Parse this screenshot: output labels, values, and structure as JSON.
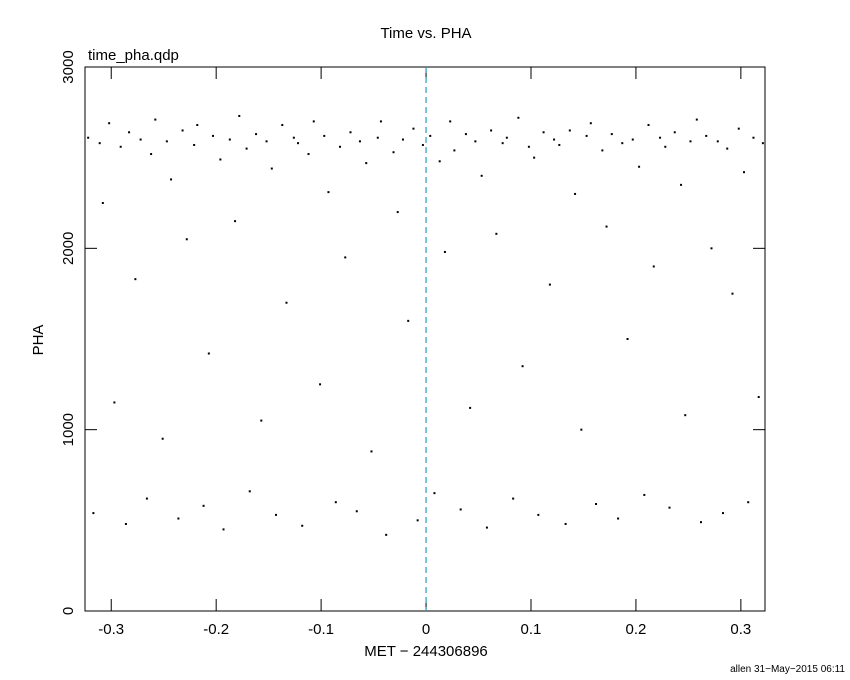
{
  "chart_data": {
    "type": "scatter",
    "title": "Time vs. PHA",
    "subtitle": "time_pha.qdp",
    "x_label": "MET − 244306896",
    "y_label": "PHA",
    "footer": "allen 31−May−2015 06:11",
    "xlim": [
      -0.325,
      0.323
    ],
    "ylim": [
      0,
      3000
    ],
    "xticks": [
      -0.3,
      -0.2,
      -0.1,
      0,
      0.1,
      0.2,
      0.3
    ],
    "yticks": [
      0,
      1000,
      2000,
      3000
    ],
    "vline": 0,
    "vline_color": "#2aa0b8",
    "series": [
      {
        "color": "#000000",
        "x": [
          -0.322,
          -0.317,
          -0.311,
          -0.308,
          -0.302,
          -0.297,
          -0.291,
          -0.286,
          -0.283,
          -0.277,
          -0.272,
          -0.266,
          -0.262,
          -0.258,
          -0.251,
          -0.247,
          -0.243,
          -0.236,
          -0.232,
          -0.228,
          -0.221,
          -0.218,
          -0.212,
          -0.207,
          -0.203,
          -0.196,
          -0.193,
          -0.187,
          -0.182,
          -0.178,
          -0.171,
          -0.168,
          -0.162,
          -0.157,
          -0.152,
          -0.147,
          -0.143,
          -0.137,
          -0.133,
          -0.126,
          -0.122,
          -0.118,
          -0.112,
          -0.107,
          -0.101,
          -0.097,
          -0.093,
          -0.086,
          -0.082,
          -0.077,
          -0.072,
          -0.066,
          -0.063,
          -0.057,
          -0.052,
          -0.046,
          -0.043,
          -0.038,
          -0.031,
          -0.027,
          -0.022,
          -0.017,
          -0.012,
          -0.008,
          -0.003,
          0.004,
          0.008,
          0.013,
          0.018,
          0.023,
          0.027,
          0.033,
          0.038,
          0.042,
          0.047,
          0.053,
          0.058,
          0.062,
          0.067,
          0.073,
          0.077,
          0.083,
          0.088,
          0.092,
          0.098,
          0.103,
          0.107,
          0.112,
          0.118,
          0.122,
          0.127,
          0.133,
          0.137,
          0.142,
          0.148,
          0.153,
          0.157,
          0.162,
          0.168,
          0.172,
          0.177,
          0.183,
          0.187,
          0.192,
          0.197,
          0.203,
          0.208,
          0.212,
          0.217,
          0.223,
          0.228,
          0.232,
          0.237,
          0.243,
          0.247,
          0.252,
          0.258,
          0.262,
          0.267,
          0.272,
          0.278,
          0.283,
          0.287,
          0.292,
          0.298,
          0.303,
          0.307,
          0.312,
          0.317,
          0.321
        ],
        "values": [
          2610,
          540,
          2580,
          2250,
          2690,
          1150,
          2560,
          480,
          2640,
          1830,
          2600,
          620,
          2520,
          2710,
          950,
          2590,
          2380,
          510,
          2650,
          2050,
          2570,
          2680,
          580,
          1420,
          2620,
          2490,
          450,
          2600,
          2150,
          2730,
          2550,
          660,
          2630,
          1050,
          2590,
          2440,
          530,
          2680,
          1700,
          2610,
          2580,
          470,
          2520,
          2700,
          1250,
          2620,
          2310,
          600,
          2560,
          1950,
          2640,
          550,
          2590,
          2470,
          880,
          2610,
          2700,
          420,
          2530,
          2200,
          2600,
          1600,
          2660,
          500,
          2570,
          2620,
          650,
          2480,
          1980,
          2700,
          2540,
          560,
          2630,
          1120,
          2590,
          2400,
          460,
          2650,
          2080,
          2580,
          2610,
          620,
          2720,
          1350,
          2560,
          2500,
          530,
          2640,
          1800,
          2600,
          2570,
          480,
          2650,
          2300,
          1000,
          2620,
          2690,
          590,
          2540,
          2120,
          2630,
          510,
          2580,
          1500,
          2600,
          2450,
          640,
          2680,
          1900,
          2610,
          2560,
          570,
          2640,
          2350,
          1080,
          2590,
          2710,
          490,
          2620,
          2000,
          2590,
          540,
          2550,
          1750,
          2660,
          2420,
          600,
          2610,
          1180,
          2580
        ]
      }
    ]
  }
}
